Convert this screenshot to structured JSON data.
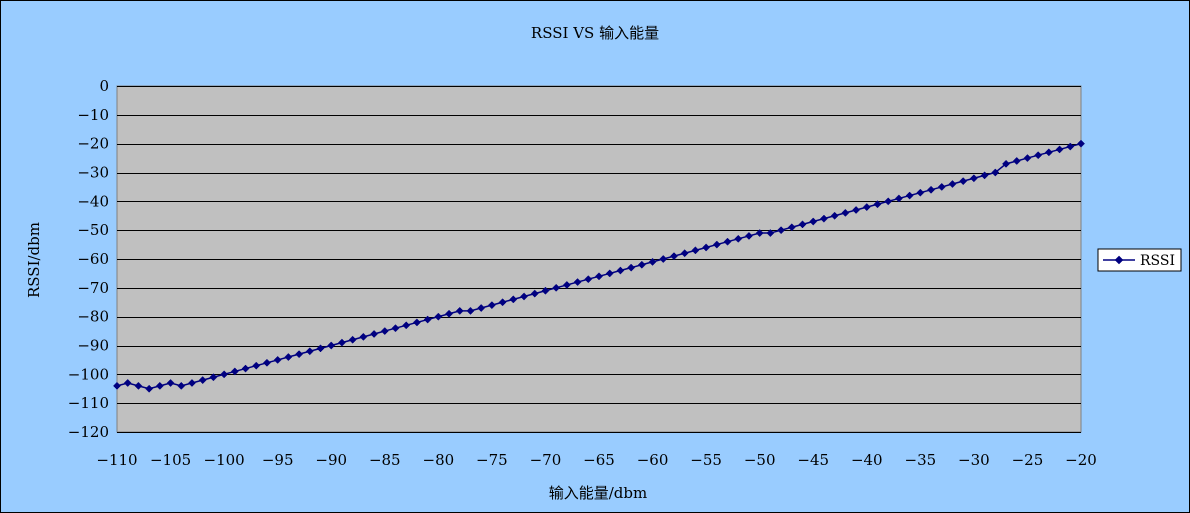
{
  "chart_data": {
    "type": "line",
    "title": "RSSI VS 输入能量",
    "xlabel": "输入能量/dbm",
    "ylabel": "RSSI/dbm",
    "xlim": [
      -110,
      -20
    ],
    "ylim": [
      -120,
      0
    ],
    "x_ticks": [
      -110,
      -105,
      -100,
      -95,
      -90,
      -85,
      -80,
      -75,
      -70,
      -65,
      -60,
      -55,
      -50,
      -45,
      -40,
      -35,
      -30,
      -25,
      -20
    ],
    "y_ticks": [
      0,
      -10,
      -20,
      -30,
      -40,
      -50,
      -60,
      -70,
      -80,
      -90,
      -100,
      -110,
      -120
    ],
    "grid": true,
    "legend_position": "right",
    "series": [
      {
        "name": "RSSI",
        "color": "#000080",
        "marker": "diamond",
        "x": [
          -110,
          -109,
          -108,
          -107,
          -106,
          -105,
          -104,
          -103,
          -102,
          -101,
          -100,
          -99,
          -98,
          -97,
          -96,
          -95,
          -94,
          -93,
          -92,
          -91,
          -90,
          -89,
          -88,
          -87,
          -86,
          -85,
          -84,
          -83,
          -82,
          -81,
          -80,
          -79,
          -78,
          -77,
          -76,
          -75,
          -74,
          -73,
          -72,
          -71,
          -70,
          -69,
          -68,
          -67,
          -66,
          -65,
          -64,
          -63,
          -62,
          -61,
          -60,
          -59,
          -58,
          -57,
          -56,
          -55,
          -54,
          -53,
          -52,
          -51,
          -50,
          -49,
          -48,
          -47,
          -46,
          -45,
          -44,
          -43,
          -42,
          -41,
          -40,
          -39,
          -38,
          -37,
          -36,
          -35,
          -34,
          -33,
          -32,
          -31,
          -30,
          -29,
          -28,
          -27,
          -26,
          -25,
          -24,
          -23,
          -22,
          -21,
          -20
        ],
        "values": [
          -104,
          -103,
          -104,
          -105,
          -104,
          -103,
          -104,
          -103,
          -102,
          -101,
          -100,
          -99,
          -98,
          -97,
          -96,
          -95,
          -94,
          -93,
          -92,
          -91,
          -90,
          -89,
          -88,
          -87,
          -86,
          -85,
          -84,
          -83,
          -82,
          -81,
          -80,
          -79,
          -78,
          -78,
          -77,
          -76,
          -75,
          -74,
          -73,
          -72,
          -71,
          -70,
          -69,
          -68,
          -67,
          -66,
          -65,
          -64,
          -63,
          -62,
          -61,
          -60,
          -59,
          -58,
          -57,
          -56,
          -55,
          -54,
          -53,
          -52,
          -51,
          -51,
          -50,
          -49,
          -48,
          -47,
          -46,
          -45,
          -44,
          -43,
          -42,
          -41,
          -40,
          -39,
          -38,
          -37,
          -36,
          -35,
          -34,
          -33,
          -32,
          -31,
          -30,
          -27,
          -26,
          -25,
          -24,
          -23,
          -22,
          -21,
          -20
        ]
      }
    ]
  },
  "colors": {
    "outer_background": "#99ccff",
    "plot_background": "#c0c0c0",
    "gridline": "#000000",
    "series_line": "#000080"
  }
}
